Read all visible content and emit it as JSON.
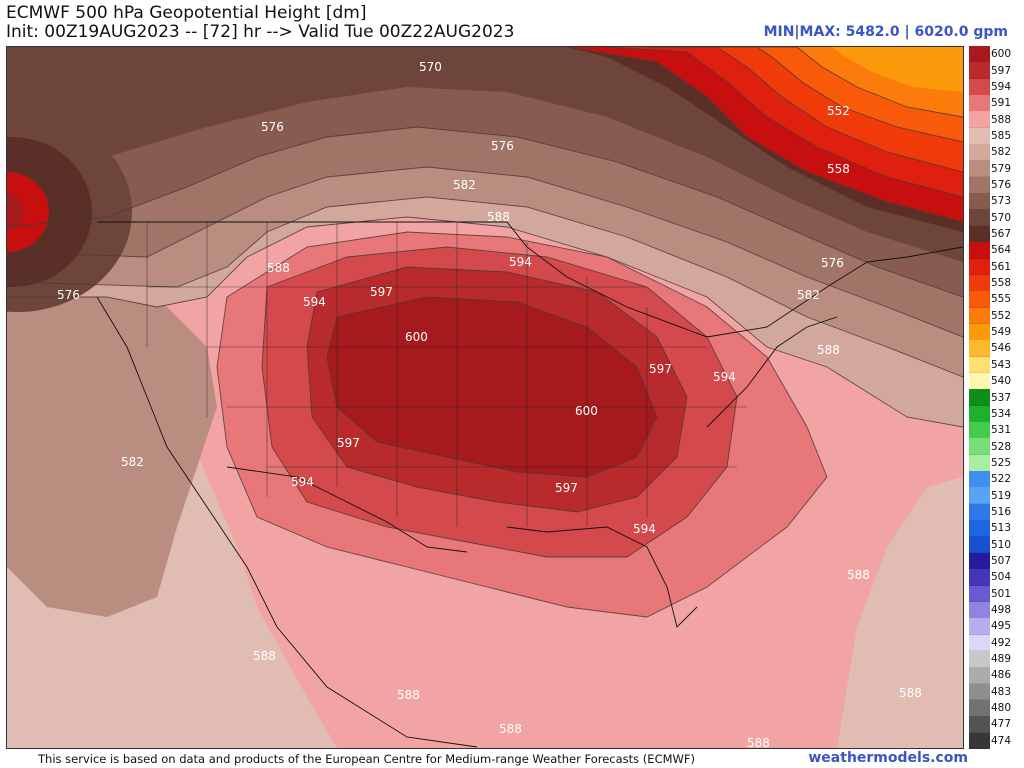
{
  "header": {
    "title_line1": "ECMWF 500 hPa Geopotential Height [dm]",
    "title_line2": "Init: 00Z19AUG2023 -- [72] hr --> Valid Tue 00Z22AUG2023",
    "minmax": "MIN|MAX: 5482.0 | 6020.0 gpm"
  },
  "footer": {
    "note": "This service is based on data and products of the European Centre for Medium-range Weather Forecasts (ECMWF)",
    "site": "weathermodels.com"
  },
  "colorbar": {
    "entries": [
      {
        "label": "600",
        "color": "#a6191c"
      },
      {
        "label": "597",
        "color": "#b82a2b"
      },
      {
        "label": "594",
        "color": "#d44a4c"
      },
      {
        "label": "591",
        "color": "#e8777a"
      },
      {
        "label": "588",
        "color": "#f2a4a4"
      },
      {
        "label": "585",
        "color": "#e1bcb2"
      },
      {
        "label": "582",
        "color": "#d2a89d"
      },
      {
        "label": "579",
        "color": "#b98d80"
      },
      {
        "label": "576",
        "color": "#a07467"
      },
      {
        "label": "573",
        "color": "#875b4f"
      },
      {
        "label": "570",
        "color": "#6e453a"
      },
      {
        "label": "567",
        "color": "#5a2f28"
      },
      {
        "label": "564",
        "color": "#c80f0f"
      },
      {
        "label": "561",
        "color": "#e0200e"
      },
      {
        "label": "558",
        "color": "#f03a0a"
      },
      {
        "label": "555",
        "color": "#f85a0a"
      },
      {
        "label": "552",
        "color": "#fb7c0a"
      },
      {
        "label": "549",
        "color": "#fc9a0c"
      },
      {
        "label": "546",
        "color": "#fdb830"
      },
      {
        "label": "543",
        "color": "#fde070"
      },
      {
        "label": "540",
        "color": "#fff7b0"
      },
      {
        "label": "537",
        "color": "#0e8f1c"
      },
      {
        "label": "534",
        "color": "#1fb02d"
      },
      {
        "label": "531",
        "color": "#46cc4c"
      },
      {
        "label": "528",
        "color": "#78de77"
      },
      {
        "label": "525",
        "color": "#a8eea2"
      },
      {
        "label": "522",
        "color": "#3e8ff0"
      },
      {
        "label": "519",
        "color": "#5aa2f3"
      },
      {
        "label": "516",
        "color": "#2e78e8"
      },
      {
        "label": "513",
        "color": "#1e66e0"
      },
      {
        "label": "510",
        "color": "#1a4fd0"
      },
      {
        "label": "507",
        "color": "#241c9c"
      },
      {
        "label": "504",
        "color": "#4436b8"
      },
      {
        "label": "501",
        "color": "#6a5ad0"
      },
      {
        "label": "498",
        "color": "#9184e0"
      },
      {
        "label": "495",
        "color": "#b6acee"
      },
      {
        "label": "492",
        "color": "#dcd6f7"
      },
      {
        "label": "489",
        "color": "#c8c8c8"
      },
      {
        "label": "486",
        "color": "#ababab"
      },
      {
        "label": "483",
        "color": "#8e8e8e"
      },
      {
        "label": "480",
        "color": "#717171"
      },
      {
        "label": "477",
        "color": "#545454"
      },
      {
        "label": "474",
        "color": "#373737"
      }
    ]
  },
  "map": {
    "contour_labels": [
      {
        "text": "570"
      },
      {
        "text": "576"
      },
      {
        "text": "576"
      },
      {
        "text": "582"
      },
      {
        "text": "588"
      },
      {
        "text": "552"
      },
      {
        "text": "558"
      },
      {
        "text": "576"
      },
      {
        "text": "582"
      },
      {
        "text": "588"
      },
      {
        "text": "594"
      },
      {
        "text": "597"
      },
      {
        "text": "588"
      },
      {
        "text": "600"
      },
      {
        "text": "594"
      },
      {
        "text": "597"
      },
      {
        "text": "594"
      },
      {
        "text": "600"
      },
      {
        "text": "597"
      },
      {
        "text": "594"
      },
      {
        "text": "597"
      },
      {
        "text": "582"
      },
      {
        "text": "594"
      },
      {
        "text": "588"
      },
      {
        "text": "588"
      },
      {
        "text": "588"
      },
      {
        "text": "588"
      },
      {
        "text": "588"
      },
      {
        "text": "588"
      },
      {
        "text": "576"
      }
    ]
  }
}
